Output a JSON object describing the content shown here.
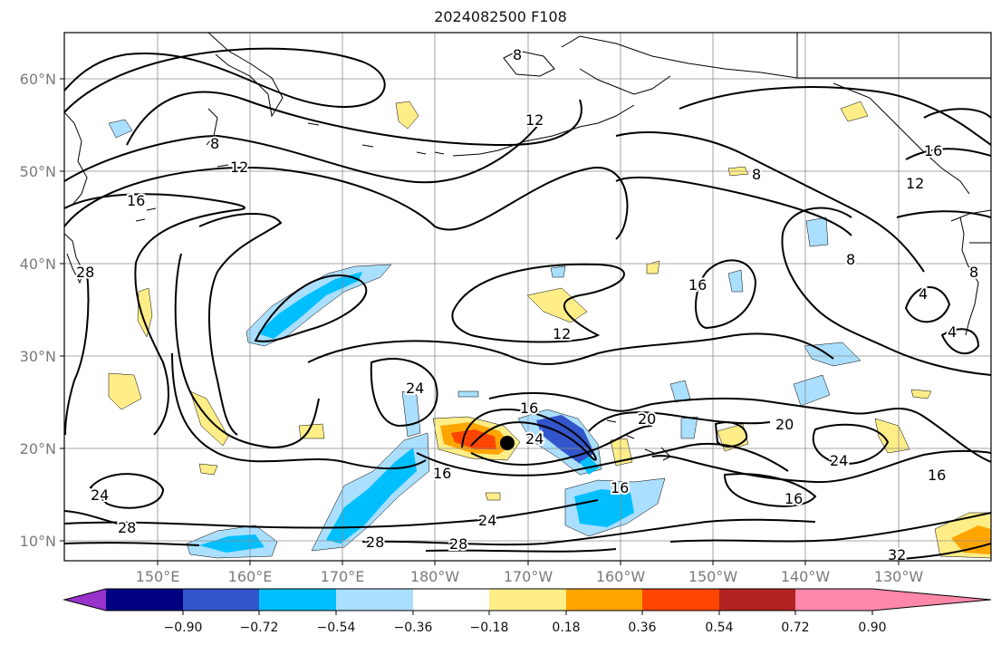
{
  "title": "2024082500 F108",
  "map": {
    "lat_ticks": [
      "60°N",
      "50°N",
      "40°N",
      "30°N",
      "20°N",
      "10°N"
    ],
    "lon_ticks": [
      "150°E",
      "160°E",
      "170°E",
      "180°W",
      "170°W",
      "160°W",
      "150°W",
      "140°W",
      "130°W"
    ],
    "contour_labels": [
      "8",
      "12",
      "12",
      "16",
      "8",
      "28",
      "16",
      "8",
      "16",
      "16",
      "4",
      "4",
      "8",
      "12",
      "24",
      "16",
      "24",
      "20",
      "16",
      "20",
      "24",
      "16",
      "24",
      "28",
      "28",
      "24",
      "16",
      "28",
      "32",
      "12",
      "8"
    ],
    "marker": "black-dot",
    "colors": {
      "grid": "#8c8c8c",
      "coast": "#000000",
      "contour": "#000000"
    }
  },
  "colorbar": {
    "colors": [
      "#9933cc",
      "#000080",
      "#3355cc",
      "#00bfff",
      "#aadfff",
      "#ffffff",
      "#ffee88",
      "#ffa500",
      "#ff4500",
      "#b22222",
      "#ff88aa"
    ],
    "labels": [
      "−0.90",
      "−0.72",
      "−0.54",
      "−0.36",
      "−0.18",
      "0.18",
      "0.36",
      "0.54",
      "0.72",
      "0.90"
    ]
  }
}
